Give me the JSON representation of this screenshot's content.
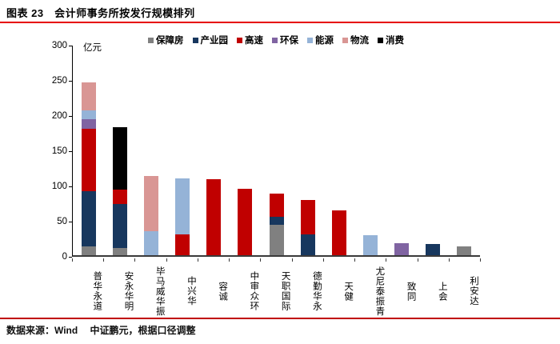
{
  "header": {
    "title": "图表 23　会计师事务所按发行规模排列"
  },
  "footer": {
    "text": "数据来源：Wind　 中证鹏元，根据口径调整"
  },
  "rules": {
    "top_color": "#e60000",
    "bottom_color": "#c00000"
  },
  "chart_data": {
    "type": "bar",
    "stacked": true,
    "title": "会计师事务所按发行规模排列",
    "unit_label": "亿元",
    "grid": false,
    "legend_position": "top",
    "categories": [
      "普华永道",
      "安永华明",
      "毕马威华振",
      "中兴华",
      "容诚",
      "中审众环",
      "天职国际",
      "德勤华永",
      "天健",
      "尤尼泰振青",
      "致同",
      "上会",
      "利安达"
    ],
    "series": [
      {
        "name": "保障房",
        "color": "#808080",
        "values": [
          12,
          10,
          0,
          0,
          0,
          0,
          43,
          0,
          0,
          0,
          0,
          0,
          12
        ]
      },
      {
        "name": "产业园",
        "color": "#17375E",
        "values": [
          79,
          63,
          0,
          0,
          0,
          0,
          12,
          29,
          0,
          0,
          0,
          16,
          0
        ]
      },
      {
        "name": "高速",
        "color": "#C00000",
        "values": [
          89,
          20,
          0,
          30,
          108,
          94,
          33,
          49,
          64,
          0,
          0,
          0,
          0
        ]
      },
      {
        "name": "环保",
        "color": "#8064A2",
        "values": [
          13,
          0,
          0,
          0,
          0,
          0,
          0,
          0,
          0,
          0,
          17,
          0,
          0
        ]
      },
      {
        "name": "能源",
        "color": "#95B3D7",
        "values": [
          13,
          0,
          34,
          79,
          0,
          0,
          0,
          0,
          0,
          28,
          0,
          0,
          0
        ]
      },
      {
        "name": "物流",
        "color": "#D99694",
        "values": [
          39,
          0,
          78,
          0,
          0,
          0,
          0,
          0,
          0,
          0,
          0,
          0,
          0
        ]
      },
      {
        "name": "消费",
        "color": "#000000",
        "values": [
          0,
          89,
          0,
          0,
          0,
          0,
          0,
          0,
          0,
          0,
          0,
          0,
          0
        ]
      }
    ],
    "totals": [
      245,
      182,
      112,
      109,
      108,
      94,
      88,
      78,
      64,
      28,
      17,
      16,
      12
    ],
    "y_axis": {
      "min": 0,
      "max": 300,
      "step": 50,
      "tick_labels": [
        "0",
        "50",
        "100",
        "150",
        "200",
        "250",
        "300"
      ]
    }
  }
}
